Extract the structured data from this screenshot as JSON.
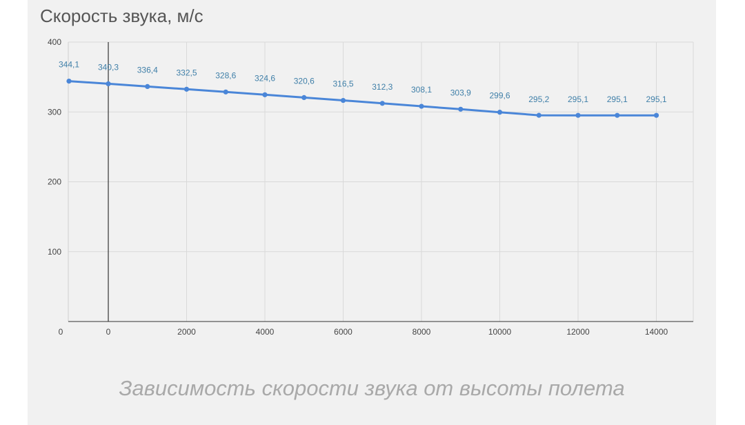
{
  "chart_data": {
    "type": "line",
    "title": "Скорость звука, м/с",
    "caption": "Зависимость скорости звука от высоты полета",
    "xlabel": "",
    "ylabel": "",
    "ylim": [
      0,
      400
    ],
    "y_ticks": [
      100,
      200,
      300,
      400
    ],
    "x_tick_labels": [
      "0",
      "0",
      "2000",
      "4000",
      "6000",
      "8000",
      "10000",
      "12000",
      "14000"
    ],
    "x": [
      -1000,
      0,
      1000,
      2000,
      3000,
      4000,
      5000,
      6000,
      7000,
      8000,
      9000,
      10000,
      11000,
      12000,
      13000,
      14000
    ],
    "series": [
      {
        "values": [
          344.1,
          340.3,
          336.4,
          332.5,
          328.6,
          324.6,
          320.6,
          316.5,
          312.3,
          308.1,
          303.9,
          299.6,
          295.2,
          295.1,
          295.1,
          295.1
        ],
        "labels": [
          "344,1",
          "340,3",
          "336,4",
          "332,5",
          "328,6",
          "324,6",
          "320,6",
          "316,5",
          "312,3",
          "308,1",
          "303,9",
          "299,6",
          "295,2",
          "295,1",
          "295,1",
          "295,1"
        ],
        "color": "#4a86d8"
      }
    ],
    "grid": true,
    "line_color": "#4a86d8",
    "label_color": "#3f7fa8"
  }
}
